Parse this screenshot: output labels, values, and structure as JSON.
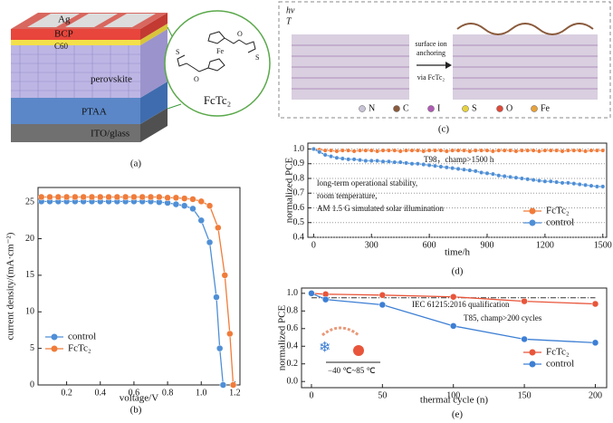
{
  "panel_labels": [
    "(a)",
    "(b)",
    "(c)",
    "(d)",
    "(e)"
  ],
  "diagram_a": {
    "layers": [
      "Ag",
      "BCP",
      "C60",
      "perovskite",
      "PTAA",
      "ITO/glass"
    ],
    "molecule": "FcTc₂",
    "atoms": [
      "Fe",
      "O",
      "O",
      "S",
      "S"
    ]
  },
  "diagram_c": {
    "light": "hv",
    "temperature": "T",
    "arrow_text": [
      "surface ion",
      "anchoring",
      "via FcTc₂"
    ],
    "legend": [
      {
        "label": "N",
        "color": "#c9c3d6"
      },
      {
        "label": "C",
        "color": "#8a5a3c"
      },
      {
        "label": "I",
        "color": "#b05bb5"
      },
      {
        "label": "S",
        "color": "#e6d240"
      },
      {
        "label": "O",
        "color": "#e04a3a"
      },
      {
        "label": "Fe",
        "color": "#e8a23a"
      }
    ]
  },
  "chart_data": [
    {
      "type": "line",
      "xlabel": "voltage/V",
      "ylabel": "current density/(mA·cm⁻²)",
      "xlim": [
        0.03,
        1.23
      ],
      "ylim": [
        0,
        27
      ],
      "xticks": [
        0.2,
        0.4,
        0.6,
        0.8,
        {
          "value": 1,
          "label": "1.0"
        },
        1.2
      ],
      "yticks": [
        0,
        5,
        10,
        15,
        20,
        25
      ],
      "grid": false,
      "legend": "lower left",
      "series": [
        {
          "name": "control",
          "color": "#4f8fd6",
          "x": [
            0.05,
            0.1,
            0.15,
            0.2,
            0.25,
            0.3,
            0.35,
            0.4,
            0.45,
            0.5,
            0.55,
            0.6,
            0.65,
            0.7,
            0.75,
            0.8,
            0.85,
            0.9,
            0.95,
            1.0,
            1.05,
            1.09,
            1.11,
            1.13
          ],
          "values": [
            25.1,
            25.1,
            25.1,
            25.1,
            25.1,
            25.1,
            25.1,
            25.1,
            25.1,
            25.1,
            25.1,
            25.1,
            25.1,
            25.1,
            25.0,
            24.9,
            24.7,
            24.5,
            24.1,
            22.5,
            19.5,
            12,
            5,
            0
          ]
        },
        {
          "name": "FcTc₂",
          "color": "#f07c3a",
          "x": [
            0.05,
            0.1,
            0.15,
            0.2,
            0.25,
            0.3,
            0.35,
            0.4,
            0.45,
            0.5,
            0.55,
            0.6,
            0.65,
            0.7,
            0.75,
            0.8,
            0.85,
            0.9,
            0.95,
            1.0,
            1.05,
            1.1,
            1.14,
            1.17,
            1.19
          ],
          "values": [
            25.7,
            25.7,
            25.7,
            25.7,
            25.7,
            25.7,
            25.7,
            25.7,
            25.7,
            25.7,
            25.7,
            25.7,
            25.7,
            25.7,
            25.7,
            25.6,
            25.6,
            25.5,
            25.4,
            25.1,
            24.5,
            21.5,
            15,
            7,
            0
          ]
        }
      ]
    },
    {
      "type": "line",
      "xlabel": "time/h",
      "ylabel": "normalized PCE",
      "xlim": [
        -30,
        1520
      ],
      "ylim": [
        0.4,
        1.04
      ],
      "xticks": [
        0,
        300,
        600,
        900,
        1200,
        1500
      ],
      "yticks": [
        0.4,
        0.5,
        0.6,
        0.7,
        0.8,
        0.9,
        {
          "value": 1,
          "label": "1.0"
        }
      ],
      "grid": true,
      "legend": "lower right",
      "annotations": [
        "T98，champ>1500 h",
        "long-term operational stability,",
        "room temperature,",
        "AM 1.5 G simulated solar illumination"
      ],
      "x": [
        0,
        30,
        60,
        90,
        120,
        150,
        180,
        210,
        240,
        270,
        300,
        330,
        360,
        390,
        420,
        450,
        480,
        510,
        540,
        570,
        600,
        630,
        660,
        690,
        720,
        750,
        780,
        810,
        840,
        870,
        900,
        930,
        960,
        990,
        1020,
        1050,
        1080,
        1110,
        1140,
        1170,
        1200,
        1230,
        1260,
        1290,
        1320,
        1350,
        1380,
        1410,
        1440,
        1470,
        1500
      ],
      "series": [
        {
          "name": "FcTc₂",
          "color": "#f07c3a",
          "values": [
            1.0,
            0.995,
            0.99,
            0.99,
            0.985,
            0.99,
            0.99,
            0.985,
            0.99,
            0.99,
            0.99,
            0.985,
            0.99,
            0.99,
            0.99,
            0.985,
            0.99,
            0.99,
            0.99,
            0.985,
            0.99,
            0.99,
            0.99,
            0.985,
            0.99,
            0.99,
            0.99,
            0.985,
            0.99,
            0.99,
            0.99,
            0.985,
            0.99,
            0.99,
            0.99,
            0.985,
            0.99,
            0.99,
            0.99,
            0.985,
            0.99,
            0.99,
            0.99,
            0.985,
            0.99,
            0.99,
            0.99,
            0.985,
            0.99,
            0.99,
            0.99
          ]
        },
        {
          "name": "control",
          "color": "#4f8fd6",
          "values": [
            1.0,
            0.98,
            0.96,
            0.95,
            0.94,
            0.935,
            0.93,
            0.93,
            0.925,
            0.92,
            0.92,
            0.92,
            0.915,
            0.915,
            0.91,
            0.91,
            0.905,
            0.9,
            0.9,
            0.895,
            0.89,
            0.885,
            0.88,
            0.875,
            0.87,
            0.865,
            0.86,
            0.855,
            0.85,
            0.84,
            0.835,
            0.83,
            0.82,
            0.815,
            0.81,
            0.805,
            0.8,
            0.795,
            0.79,
            0.785,
            0.78,
            0.78,
            0.775,
            0.77,
            0.77,
            0.765,
            0.76,
            0.755,
            0.75,
            0.745,
            0.745
          ]
        }
      ]
    },
    {
      "type": "line",
      "xlabel": "thermal cycle (n)",
      "ylabel": "normalized PCE",
      "xlim": [
        -7,
        208
      ],
      "ylim": [
        -0.07,
        1.06
      ],
      "xticks": [
        0,
        50,
        100,
        150,
        200
      ],
      "yticks": [
        {
          "value": 0,
          "label": "0.0"
        },
        0.2,
        0.4,
        0.6,
        0.8,
        {
          "value": 1,
          "label": "1.0"
        }
      ],
      "grid": false,
      "legend": "lower right",
      "ref_line": 0.95,
      "annotations": [
        "IEC 61215:2016 qualification",
        "T85, champ>200 cycles",
        "−40 ℃~85 ℃"
      ],
      "x": [
        0,
        10,
        50,
        100,
        150,
        200
      ],
      "series": [
        {
          "name": "FcTc₂",
          "color": "#e8553a",
          "values": [
            1.0,
            0.99,
            0.98,
            0.96,
            0.91,
            0.88
          ]
        },
        {
          "name": "control",
          "color": "#3d7fd4",
          "values": [
            1.0,
            0.93,
            0.87,
            0.63,
            0.48,
            0.44
          ]
        }
      ]
    }
  ]
}
